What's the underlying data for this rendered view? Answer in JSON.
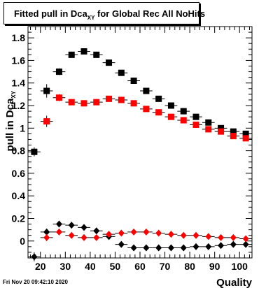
{
  "title": {
    "main": "Fitted pull in Dca",
    "sub": "XY",
    "rest": " for Global Rec All NoHits"
  },
  "footer": "Fri Nov 20 09:42:10 2020",
  "chart_data": {
    "type": "scatter",
    "title": "Fitted pull in Dca_XY for Global Rec All NoHits",
    "xlabel": "Quality",
    "ylabel": "pull in Dca_XY",
    "xlim": [
      15,
      105
    ],
    "ylim": [
      -0.15,
      1.9
    ],
    "x_ticks": [
      20,
      30,
      40,
      50,
      60,
      70,
      80,
      90,
      100
    ],
    "y_ticks": [
      0,
      0.2,
      0.4,
      0.6,
      0.8,
      1,
      1.2,
      1.4,
      1.6,
      1.8
    ],
    "x_tick_labels": [
      "20",
      "30",
      "40",
      "50",
      "60",
      "70",
      "80",
      "90",
      "100"
    ],
    "y_tick_labels": [
      "0",
      "0.2",
      "0.4",
      "0.6",
      "0.8",
      "1",
      "1.2",
      "1.4",
      "1.6",
      "1.8"
    ],
    "x": [
      17.5,
      22.5,
      27.5,
      32.5,
      37.5,
      42.5,
      47.5,
      52.5,
      57.5,
      62.5,
      67.5,
      72.5,
      77.5,
      82.5,
      87.5,
      92.5,
      97.5,
      102.5
    ],
    "series": [
      {
        "marker": "square",
        "color": "#000000",
        "values": [
          0.79,
          1.33,
          1.5,
          1.65,
          1.68,
          1.65,
          1.58,
          1.49,
          1.42,
          1.33,
          1.26,
          1.2,
          1.15,
          1.1,
          1.05,
          1.0,
          0.97,
          0.95
        ],
        "errors": [
          0.04,
          0.06,
          0.03,
          0.02,
          0.02,
          0.02,
          0.02,
          0.02,
          0.02,
          0.02,
          0.02,
          0.02,
          0.02,
          0.02,
          0.02,
          0.02,
          0.02,
          0.02
        ]
      },
      {
        "marker": "square",
        "color": "#ff0000",
        "values": [
          null,
          1.06,
          1.27,
          1.23,
          1.22,
          1.23,
          1.26,
          1.25,
          1.22,
          1.17,
          1.14,
          1.1,
          1.07,
          1.03,
          0.99,
          0.97,
          0.93,
          0.91
        ],
        "errors": [
          null,
          0.05,
          0.03,
          0.02,
          0.02,
          0.02,
          0.02,
          0.02,
          0.02,
          0.02,
          0.02,
          0.02,
          0.02,
          0.02,
          0.02,
          0.02,
          0.02,
          0.02
        ]
      },
      {
        "marker": "diamond",
        "color": "#000000",
        "values": [
          -0.14,
          0.08,
          0.15,
          0.14,
          0.12,
          0.09,
          0.04,
          -0.03,
          -0.06,
          -0.06,
          -0.06,
          -0.06,
          -0.06,
          -0.05,
          -0.05,
          -0.04,
          -0.03,
          -0.03
        ],
        "errors": [
          0.04,
          0.03,
          0.02,
          0.02,
          0.02,
          0.01,
          0.01,
          0.01,
          0.01,
          0.01,
          0.01,
          0.01,
          0.01,
          0.01,
          0.01,
          0.01,
          0.01,
          0.01
        ]
      },
      {
        "marker": "diamond",
        "color": "#ff0000",
        "values": [
          null,
          0.03,
          0.08,
          0.05,
          0.03,
          0.03,
          0.06,
          0.07,
          0.08,
          0.08,
          0.07,
          0.06,
          0.05,
          0.05,
          0.04,
          0.03,
          0.03,
          0.02
        ],
        "errors": [
          null,
          0.03,
          0.02,
          0.01,
          0.01,
          0.01,
          0.01,
          0.01,
          0.01,
          0.01,
          0.01,
          0.01,
          0.01,
          0.01,
          0.01,
          0.01,
          0.01,
          0.01
        ]
      }
    ],
    "x_bin_half_width": 2.5,
    "grid": false,
    "legend": false
  }
}
